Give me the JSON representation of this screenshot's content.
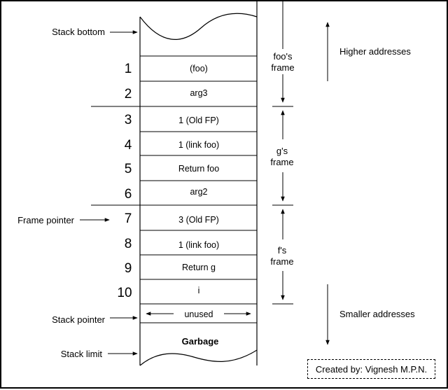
{
  "labels": {
    "stack_bottom": "Stack bottom",
    "frame_pointer": "Frame pointer",
    "stack_pointer": "Stack pointer",
    "stack_limit": "Stack limit",
    "higher_addresses": "Higher addresses",
    "smaller_addresses": "Smaller addresses"
  },
  "frames": {
    "foo": {
      "line1": "foo's",
      "line2": "frame"
    },
    "g": {
      "line1": "g's",
      "line2": "frame"
    },
    "f": {
      "line1": "f's",
      "line2": "frame"
    }
  },
  "cells": [
    {
      "num": "1",
      "text": "(foo)"
    },
    {
      "num": "2",
      "text": "arg3"
    },
    {
      "num": "3",
      "text": "1 (Old FP)"
    },
    {
      "num": "4",
      "text": "1 (link foo)"
    },
    {
      "num": "5",
      "text": "Return foo"
    },
    {
      "num": "6",
      "text": "arg2"
    },
    {
      "num": "7",
      "text": "3 (Old FP)"
    },
    {
      "num": "8",
      "text": "1 (link foo)"
    },
    {
      "num": "9",
      "text": "Return g"
    },
    {
      "num": "10",
      "text": "i"
    }
  ],
  "unused": "unused",
  "garbage": "Garbage",
  "credit": "Created by: Vignesh M.P.N."
}
